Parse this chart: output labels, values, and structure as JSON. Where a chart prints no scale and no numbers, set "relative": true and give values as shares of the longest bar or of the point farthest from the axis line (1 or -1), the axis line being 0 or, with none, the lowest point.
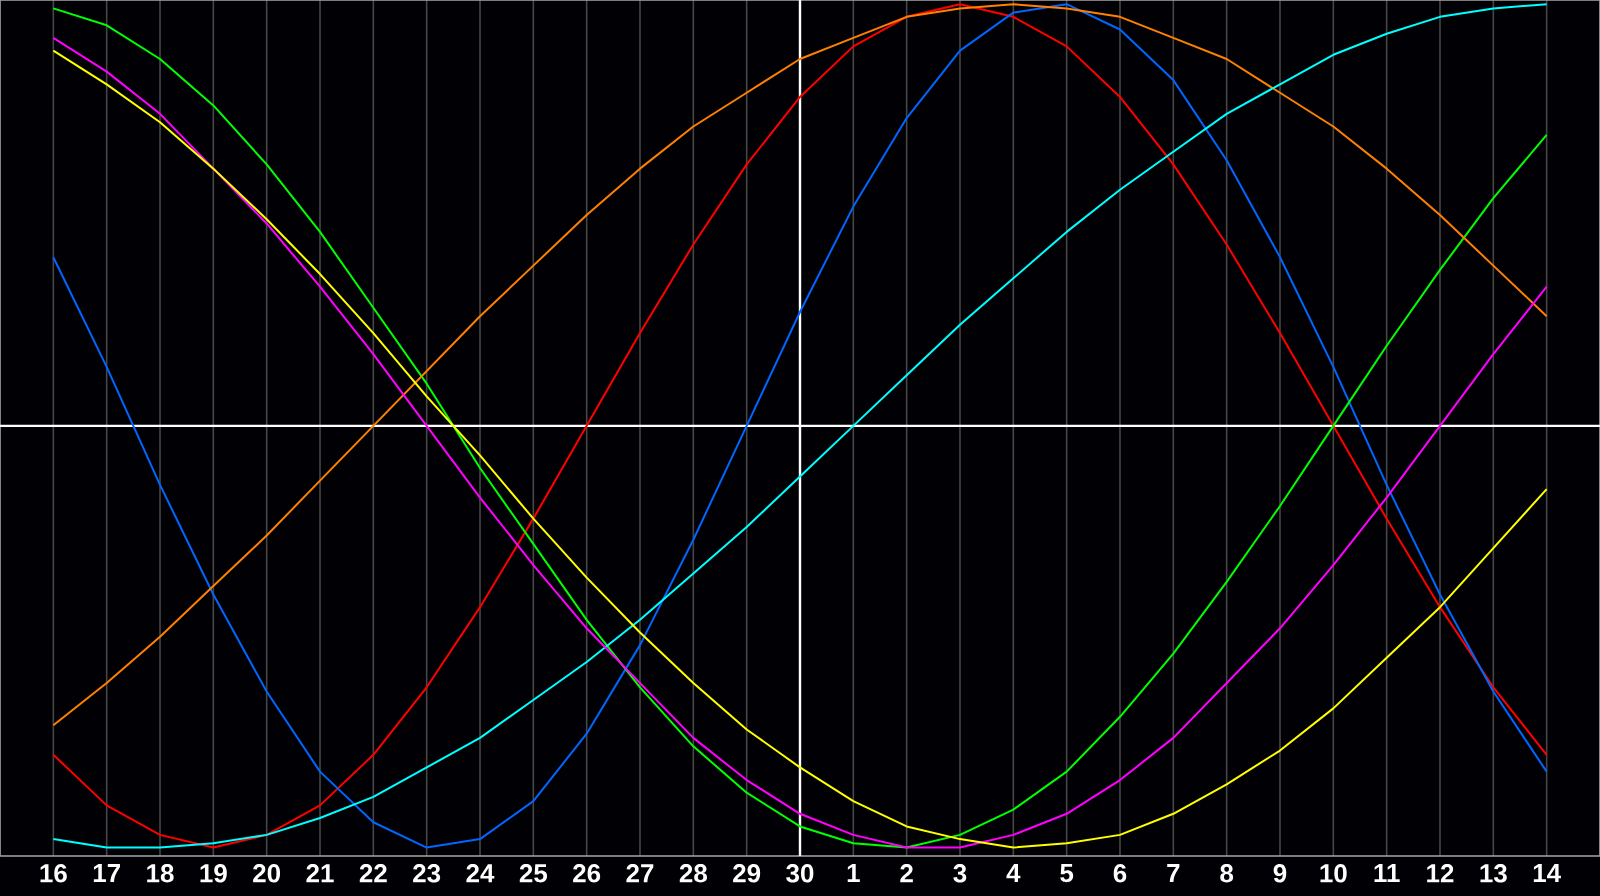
{
  "chart_data": {
    "type": "line",
    "relative": true,
    "grid": "x",
    "marker": "none",
    "line_style": "solid",
    "categories": [
      "16",
      "17",
      "18",
      "19",
      "20",
      "21",
      "22",
      "23",
      "24",
      "25",
      "26",
      "27",
      "28",
      "29",
      "30",
      "1",
      "2",
      "3",
      "4",
      "5",
      "6",
      "7",
      "8",
      "9",
      "10",
      "11",
      "12",
      "13",
      "14"
    ],
    "ref_lines": [
      {
        "axis": "x",
        "value": "30",
        "color": "#ffffff"
      }
    ],
    "series": [
      {
        "color": "#ff0000",
        "values": [
          -0.78,
          -0.9,
          -0.97,
          -1,
          -0.97,
          -0.9,
          -0.78,
          -0.62,
          -0.43,
          -0.22,
          0,
          0.22,
          0.43,
          0.62,
          0.78,
          0.9,
          0.97,
          1,
          0.97,
          0.9,
          0.78,
          0.62,
          0.43,
          0.22,
          0,
          -0.22,
          -0.43,
          -0.62,
          -0.78
        ]
      },
      {
        "color": "#0066ff",
        "values": [
          0.4,
          0.14,
          -0.14,
          -0.4,
          -0.63,
          -0.82,
          -0.94,
          -1,
          -0.98,
          -0.89,
          -0.73,
          -0.52,
          -0.27,
          0,
          0.27,
          0.52,
          0.73,
          0.89,
          0.98,
          1,
          0.94,
          0.82,
          0.63,
          0.4,
          0.14,
          -0.14,
          -0.4,
          -0.63,
          -0.82
        ]
      },
      {
        "color": "#00ff00",
        "values": [
          0.99,
          0.95,
          0.87,
          0.76,
          0.62,
          0.46,
          0.28,
          0.1,
          -0.1,
          -0.28,
          -0.46,
          -0.62,
          -0.76,
          -0.87,
          -0.95,
          -0.99,
          -1,
          -0.97,
          -0.91,
          -0.82,
          -0.69,
          -0.54,
          -0.37,
          -0.19,
          0,
          0.19,
          0.37,
          0.54,
          0.69
        ]
      },
      {
        "color": "#ff8000",
        "values": [
          -0.71,
          -0.61,
          -0.5,
          -0.38,
          -0.26,
          -0.13,
          0,
          0.13,
          0.26,
          0.38,
          0.5,
          0.61,
          0.71,
          0.79,
          0.87,
          0.92,
          0.97,
          0.99,
          1,
          0.99,
          0.97,
          0.92,
          0.87,
          0.79,
          0.71,
          0.61,
          0.5,
          0.38,
          0.26
        ]
      },
      {
        "color": "#00ffff",
        "values": [
          -0.98,
          -1,
          -1,
          -0.99,
          -0.97,
          -0.93,
          -0.88,
          -0.81,
          -0.74,
          -0.65,
          -0.56,
          -0.46,
          -0.35,
          -0.24,
          -0.12,
          0,
          0.12,
          0.24,
          0.35,
          0.46,
          0.56,
          0.65,
          0.74,
          0.81,
          0.88,
          0.93,
          0.97,
          0.99,
          1
        ]
      },
      {
        "color": "#ff00ff",
        "values": [
          0.92,
          0.84,
          0.74,
          0.61,
          0.48,
          0.33,
          0.17,
          0,
          -0.17,
          -0.33,
          -0.48,
          -0.61,
          -0.74,
          -0.84,
          -0.92,
          -0.97,
          -1,
          -1,
          -0.97,
          -0.92,
          -0.84,
          -0.74,
          -0.61,
          -0.48,
          -0.33,
          -0.17,
          0,
          0.17,
          0.33
        ]
      },
      {
        "color": "#ffff00",
        "values": [
          0.89,
          0.81,
          0.72,
          0.61,
          0.49,
          0.36,
          0.22,
          0.07,
          -0.07,
          -0.22,
          -0.36,
          -0.49,
          -0.61,
          -0.72,
          -0.81,
          -0.89,
          -0.95,
          -0.98,
          -1,
          -0.99,
          -0.97,
          -0.92,
          -0.85,
          -0.77,
          -0.67,
          -0.55,
          -0.43,
          -0.29,
          -0.15
        ]
      }
    ]
  }
}
